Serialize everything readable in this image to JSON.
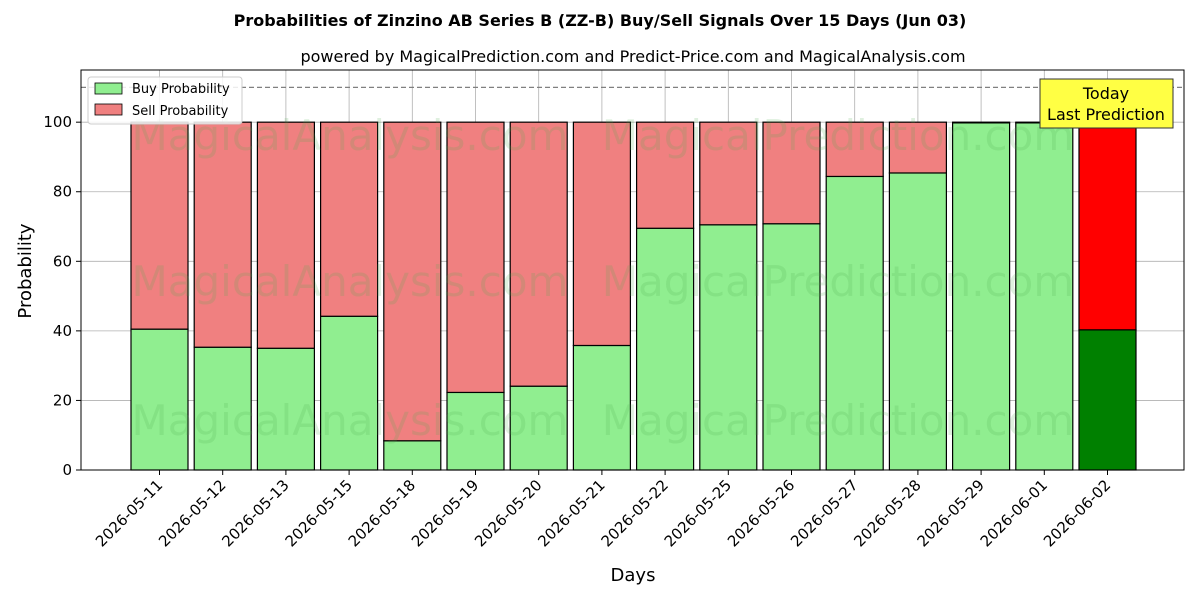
{
  "chart_data": {
    "type": "bar",
    "stacked": true,
    "title": "Probabilities of Zinzino AB Series B (ZZ-B) Buy/Sell Signals Over 15 Days (Jun 03)",
    "subtitle": "powered by MagicalPrediction.com and Predict-Price.com and MagicalAnalysis.com",
    "xlabel": "Days",
    "ylabel": "Probability",
    "ylim": [
      0,
      115
    ],
    "yticks": [
      0,
      20,
      40,
      60,
      80,
      100
    ],
    "grid": true,
    "legend_position": "top-left",
    "categories": [
      "2026-05-11",
      "2026-05-12",
      "2026-05-13",
      "2026-05-15",
      "2026-05-18",
      "2026-05-19",
      "2026-05-20",
      "2026-05-21",
      "2026-05-22",
      "2026-05-25",
      "2026-05-26",
      "2026-05-27",
      "2026-05-28",
      "2026-05-29",
      "2026-06-01",
      "2026-06-02"
    ],
    "series": [
      {
        "name": "Buy Probability",
        "color": "#90ee90",
        "values": [
          40.5,
          35.3,
          35.0,
          44.2,
          8.4,
          22.3,
          24.1,
          35.8,
          69.5,
          70.5,
          70.8,
          84.4,
          85.4,
          99.8,
          99.8,
          40.3
        ]
      },
      {
        "name": "Sell Probability",
        "color": "#f08080",
        "values": [
          59.5,
          64.7,
          65.0,
          55.8,
          91.6,
          77.7,
          75.9,
          64.2,
          30.5,
          29.5,
          29.2,
          15.6,
          14.6,
          0.2,
          0.2,
          59.7
        ]
      }
    ],
    "last_bar_colors": {
      "buy": "#008000",
      "sell": "#ff0000"
    },
    "reference_line": {
      "y": 110,
      "style": "dashed",
      "color": "#808080"
    },
    "annotation": {
      "lines": [
        "Today",
        "Last Prediction"
      ],
      "background": "#ffff44"
    },
    "watermarks": [
      "MagicalAnalysis.com",
      "MagicalPrediction.com"
    ]
  }
}
